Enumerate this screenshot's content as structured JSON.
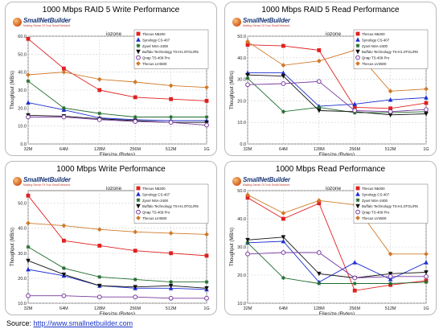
{
  "source": {
    "label": "Source:",
    "url": "http://www.smallnetbuilder.com"
  },
  "logo": {
    "name": "SmallNetBuilder",
    "tagline": "Making Sense Of Your Small Network"
  },
  "colors": {
    "Thecus N5200": "#e02020",
    "Synology CS-407": "#1c2fd0",
    "Zyxel NSA-2400": "#1e6b2c",
    "Buffalo Technology TS-H1.0TGL/R5": "#111111",
    "Qnap TS-409 Pro": "#7a3aa0",
    "Thecus LV4500": "#d07a2a"
  },
  "chart_data": [
    {
      "type": "line",
      "title": "1000 Mbps RAID 5 Write Performance",
      "benchmark": "iozone",
      "xlabel": "Filesize (Bytes)",
      "ylabel": "Thoughput (MB/s)",
      "x": [
        "32M",
        "64M",
        "128M",
        "256M",
        "512M",
        "1G"
      ],
      "ylim": [
        0,
        60
      ],
      "yticks": [
        0,
        10,
        20,
        30,
        40,
        50,
        60
      ],
      "grid": true,
      "legend_position": "top-right",
      "series": [
        {
          "name": "Thecus N5200",
          "values": [
            58.5,
            42,
            30,
            26,
            25,
            24
          ]
        },
        {
          "name": "Synology CS-407",
          "values": [
            23,
            19,
            14.5,
            13.5,
            13,
            13
          ]
        },
        {
          "name": "Zyxel NSA-2400",
          "values": [
            35,
            20,
            17,
            15,
            15,
            15
          ]
        },
        {
          "name": "Buffalo Technology TS-H1.0TGL/R5",
          "values": [
            16,
            15.5,
            14,
            13,
            12,
            12
          ]
        },
        {
          "name": "Qnap TS-409 Pro",
          "values": [
            15,
            15,
            13.5,
            12.5,
            12,
            10.5
          ]
        },
        {
          "name": "Thecus LV4500",
          "values": [
            38.5,
            40,
            36,
            34.5,
            32.5,
            31.5
          ]
        }
      ]
    },
    {
      "type": "line",
      "title": "1000 Mbps RAID 5 Read Performance",
      "benchmark": "iozone",
      "xlabel": "Filesize (Bytes)",
      "ylabel": "Thoughput (MB/s)",
      "x": [
        "32M",
        "64M",
        "128M",
        "256M",
        "512M",
        "1G"
      ],
      "ylim": [
        0,
        50
      ],
      "yticks": [
        0,
        10,
        20,
        30,
        40,
        50
      ],
      "grid": true,
      "legend_position": "top-right",
      "series": [
        {
          "name": "Thecus N5200",
          "values": [
            46,
            45.5,
            43.5,
            17,
            16.5,
            19
          ]
        },
        {
          "name": "Synology CS-407",
          "values": [
            33,
            33,
            17.5,
            18.5,
            20.5,
            21.5
          ]
        },
        {
          "name": "Zyxel NSA-2400",
          "values": [
            30.5,
            15,
            17,
            14.5,
            14.5,
            15
          ]
        },
        {
          "name": "Buffalo Technology TS-H1.0TGL/R5",
          "values": [
            32,
            31.5,
            15.5,
            15,
            13.5,
            14
          ]
        },
        {
          "name": "Qnap TS-409 Pro",
          "values": [
            27.5,
            28,
            29,
            15.5,
            15,
            16
          ]
        },
        {
          "name": "Thecus LV4500",
          "values": [
            47.5,
            36.5,
            38.5,
            43.5,
            24.5,
            25.5
          ]
        }
      ]
    },
    {
      "type": "line",
      "title": "1000 Mbps Write Performance",
      "benchmark": "iozone",
      "xlabel": "Filesize (Bytes)",
      "ylabel": "Thoughput (MB/s)",
      "x": [
        "32M",
        "64M",
        "128M",
        "256M",
        "512M",
        "1G"
      ],
      "ylim": [
        10,
        55
      ],
      "yticks": [
        10.0,
        20.0,
        30.0,
        40.0,
        50.0
      ],
      "grid": true,
      "legend_position": "top-right",
      "series": [
        {
          "name": "Thecus N5200",
          "values": [
            53,
            35,
            33,
            31,
            30,
            29
          ]
        },
        {
          "name": "Synology CS-407",
          "values": [
            23.5,
            21,
            17,
            16,
            16,
            15.5
          ]
        },
        {
          "name": "Zyxel NSA-2400",
          "values": [
            32.5,
            24,
            20.5,
            19.5,
            18.5,
            18.5
          ]
        },
        {
          "name": "Buffalo Technology TS-H1.0TGL/R5",
          "values": [
            27,
            21.5,
            17,
            16.5,
            17,
            16
          ]
        },
        {
          "name": "Qnap TS-409 Pro",
          "values": [
            13,
            13,
            12.5,
            12.5,
            12,
            12
          ]
        },
        {
          "name": "Thecus LV4500",
          "values": [
            42,
            41,
            39.5,
            38.5,
            38,
            37.5
          ]
        }
      ]
    },
    {
      "type": "line",
      "title": "1000 Mbps Read Performance",
      "benchmark": "iozone",
      "xlabel": "Filesize (Bytes)",
      "ylabel": "Thoughput (MB/s)",
      "x": [
        "32M",
        "64M",
        "128M",
        "256M",
        "512M",
        "1G"
      ],
      "ylim": [
        10,
        50
      ],
      "yticks": [
        10,
        20,
        30,
        40,
        50
      ],
      "grid": true,
      "legend_position": "top-right",
      "series": [
        {
          "name": "Thecus N5200",
          "values": [
            47.5,
            40,
            45.5,
            14.5,
            16.5,
            18
          ]
        },
        {
          "name": "Synology CS-407",
          "values": [
            31.5,
            32,
            17.5,
            24.5,
            18.5,
            24.5
          ]
        },
        {
          "name": "Zyxel NSA-2400",
          "values": [
            31.5,
            19,
            17,
            17,
            17,
            17.5
          ]
        },
        {
          "name": "Buffalo Technology TS-H1.0TGL/R5",
          "values": [
            32.5,
            33.5,
            20.5,
            19,
            20.5,
            21
          ]
        },
        {
          "name": "Qnap TS-409 Pro",
          "values": [
            27.5,
            28,
            28,
            19,
            19.5,
            19.5
          ]
        },
        {
          "name": "Thecus LV4500",
          "values": [
            48.5,
            42,
            46.5,
            45,
            27.5,
            27.5
          ]
        }
      ]
    }
  ]
}
